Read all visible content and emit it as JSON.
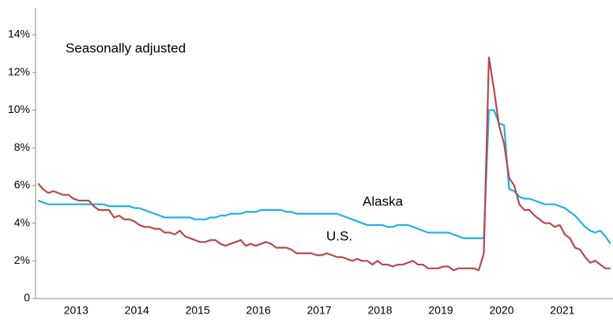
{
  "chart_data": {
    "type": "line",
    "annotation": "Seasonally adjusted",
    "categories": [
      null,
      null,
      null,
      null,
      null,
      null,
      null,
      null,
      "2013",
      null,
      null,
      null,
      null,
      null,
      null,
      null,
      null,
      null,
      null,
      null,
      "2014",
      null,
      null,
      null,
      null,
      null,
      null,
      null,
      null,
      null,
      null,
      null,
      "2015",
      null,
      null,
      null,
      null,
      null,
      null,
      null,
      null,
      null,
      null,
      null,
      "2016",
      null,
      null,
      null,
      null,
      null,
      null,
      null,
      null,
      null,
      null,
      null,
      "2017",
      null,
      null,
      null,
      null,
      null,
      null,
      null,
      null,
      null,
      null,
      null,
      "2018",
      null,
      null,
      null,
      null,
      null,
      null,
      null,
      null,
      null,
      null,
      null,
      "2019",
      null,
      null,
      null,
      null,
      null,
      null,
      null,
      null,
      null,
      null,
      null,
      "2020",
      null,
      null,
      null,
      null,
      null,
      null,
      null,
      null,
      null,
      null,
      null,
      "2021",
      null,
      null,
      null,
      null,
      null,
      null,
      null,
      null,
      null
    ],
    "series": [
      {
        "name": "Alaska",
        "color": "#1fb1e6",
        "values": [
          5.2,
          5.1,
          5.0,
          5.0,
          5.0,
          5.0,
          5.0,
          5.0,
          5.0,
          5.0,
          5.0,
          5.0,
          5.0,
          5.0,
          4.9,
          4.9,
          4.9,
          4.9,
          4.9,
          4.8,
          4.8,
          4.7,
          4.6,
          4.5,
          4.4,
          4.3,
          4.3,
          4.3,
          4.3,
          4.3,
          4.3,
          4.2,
          4.2,
          4.2,
          4.3,
          4.3,
          4.4,
          4.4,
          4.5,
          4.5,
          4.5,
          4.6,
          4.6,
          4.6,
          4.7,
          4.7,
          4.7,
          4.7,
          4.7,
          4.6,
          4.6,
          4.5,
          4.5,
          4.5,
          4.5,
          4.5,
          4.5,
          4.5,
          4.5,
          4.5,
          4.4,
          4.3,
          4.2,
          4.1,
          4.0,
          3.9,
          3.9,
          3.9,
          3.9,
          3.8,
          3.8,
          3.9,
          3.9,
          3.9,
          3.8,
          3.7,
          3.6,
          3.5,
          3.5,
          3.5,
          3.5,
          3.5,
          3.4,
          3.3,
          3.2,
          3.2,
          3.2,
          3.2,
          3.2,
          10.0,
          10.0,
          9.3,
          9.2,
          5.8,
          5.7,
          5.4,
          5.3,
          5.3,
          5.2,
          5.1,
          5.0,
          5.0,
          5.0,
          4.9,
          4.8,
          4.6,
          4.4,
          4.1,
          3.8,
          3.6,
          3.5,
          3.6,
          3.3,
          2.9
        ]
      },
      {
        "name": "U.S.",
        "color": "#b8484b",
        "values": [
          6.1,
          5.8,
          5.6,
          5.7,
          5.6,
          5.5,
          5.5,
          5.3,
          5.2,
          5.2,
          5.2,
          4.9,
          4.7,
          4.7,
          4.7,
          4.3,
          4.4,
          4.2,
          4.2,
          4.1,
          3.9,
          3.8,
          3.8,
          3.7,
          3.7,
          3.5,
          3.5,
          3.4,
          3.6,
          3.3,
          3.2,
          3.1,
          3.0,
          3.0,
          3.1,
          3.1,
          2.9,
          2.8,
          2.9,
          3.0,
          3.1,
          2.8,
          2.9,
          2.8,
          2.9,
          3.0,
          2.9,
          2.7,
          2.7,
          2.7,
          2.6,
          2.4,
          2.4,
          2.4,
          2.4,
          2.3,
          2.3,
          2.4,
          2.3,
          2.2,
          2.2,
          2.1,
          2.0,
          2.1,
          2.0,
          2.0,
          1.8,
          2.0,
          1.8,
          1.8,
          1.7,
          1.8,
          1.8,
          1.9,
          2.0,
          1.8,
          1.8,
          1.6,
          1.6,
          1.6,
          1.7,
          1.7,
          1.5,
          1.6,
          1.6,
          1.6,
          1.6,
          1.5,
          2.4,
          12.8,
          11.1,
          9.2,
          8.2,
          6.4,
          6.0,
          5.0,
          4.7,
          4.7,
          4.4,
          4.2,
          4.0,
          4.0,
          3.8,
          3.9,
          3.4,
          3.2,
          2.7,
          2.6,
          2.2,
          1.9,
          2.0,
          1.8,
          1.6,
          1.6
        ]
      }
    ],
    "ylim": [
      0,
      14
    ],
    "yticks": [
      0,
      {
        "value": 2,
        "label": "2%"
      },
      {
        "value": 4,
        "label": "4%"
      },
      {
        "value": 6,
        "label": "6%"
      },
      {
        "value": 8,
        "label": "8%"
      },
      {
        "value": 10,
        "label": "10%"
      },
      {
        "value": 12,
        "label": "12%"
      },
      {
        "value": 14,
        "label": "14%"
      }
    ],
    "grid": false
  }
}
